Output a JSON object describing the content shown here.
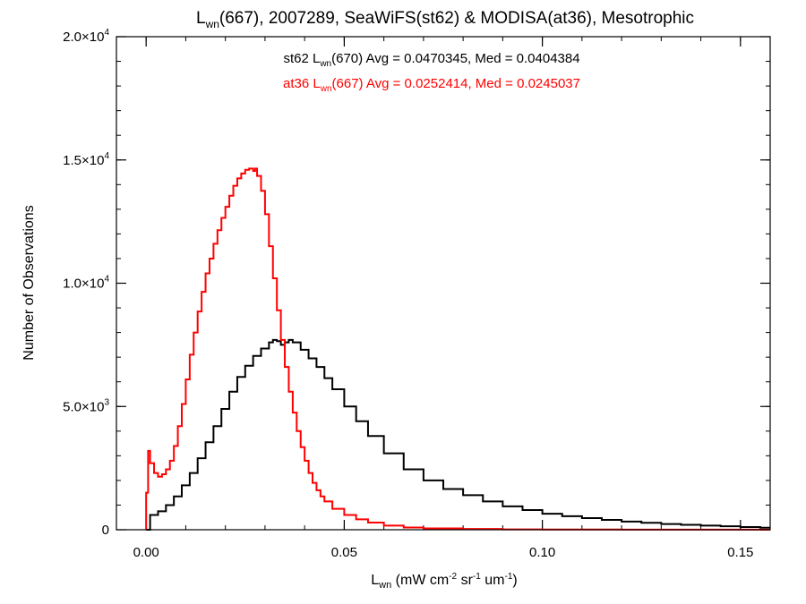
{
  "chart_data": {
    "type": "line",
    "step": true,
    "title": {
      "main": "L",
      "sub": "wn",
      "rest": "(667), 2007289, SeaWiFS(st62) & MODISA(at36), Mesotrophic"
    },
    "xlabel": {
      "main": "L",
      "sub": "wn",
      "rest": " (mW cm",
      "sup1": "-2",
      "mid1": " sr",
      "sup2": "-1",
      "mid2": " um",
      "sup3": "-1",
      "end": ")"
    },
    "ylabel": "Number of Observations",
    "xlim": [
      -0.0075,
      0.1575
    ],
    "ylim": [
      0,
      20000
    ],
    "xticks": [
      {
        "value": 0.0,
        "label": "0.00"
      },
      {
        "value": 0.05,
        "label": "0.05"
      },
      {
        "value": 0.1,
        "label": "0.10"
      },
      {
        "value": 0.15,
        "label": "0.15"
      }
    ],
    "yticks": [
      {
        "value": 0,
        "mant": "0",
        "exp": ""
      },
      {
        "value": 5000,
        "mant": "5.0×10",
        "exp": "3"
      },
      {
        "value": 10000,
        "mant": "1.0×10",
        "exp": "4"
      },
      {
        "value": 15000,
        "mant": "1.5×10",
        "exp": "4"
      },
      {
        "value": 20000,
        "mant": "2.0×10",
        "exp": "4"
      }
    ],
    "annotations": [
      {
        "pre": "st62 L",
        "sub": "wn",
        "post": "(670) Avg = 0.0470345, Med = 0.0404384",
        "color": "#000000"
      },
      {
        "pre": "at36 L",
        "sub": "wn",
        "post": "(667) Avg = 0.0252414, Med = 0.0245037",
        "color": "#ff0000"
      }
    ],
    "series": [
      {
        "color": "#000000",
        "x": [
          0.0,
          0.001,
          0.003,
          0.005,
          0.007,
          0.009,
          0.011,
          0.013,
          0.015,
          0.017,
          0.019,
          0.021,
          0.023,
          0.025,
          0.027,
          0.029,
          0.031,
          0.032,
          0.033,
          0.034,
          0.035,
          0.036,
          0.037,
          0.039,
          0.041,
          0.043,
          0.045,
          0.047,
          0.05,
          0.053,
          0.056,
          0.06,
          0.065,
          0.07,
          0.075,
          0.08,
          0.085,
          0.09,
          0.095,
          0.1,
          0.105,
          0.11,
          0.115,
          0.12,
          0.125,
          0.13,
          0.135,
          0.14,
          0.145,
          0.15,
          0.155
        ],
        "y": [
          0,
          600,
          750,
          1000,
          1350,
          1800,
          2300,
          2900,
          3550,
          4200,
          4900,
          5600,
          6200,
          6650,
          7050,
          7350,
          7600,
          7700,
          7650,
          7500,
          7600,
          7700,
          7600,
          7300,
          6950,
          6600,
          6150,
          5700,
          5000,
          4400,
          3800,
          3100,
          2450,
          2000,
          1650,
          1400,
          1150,
          950,
          800,
          650,
          550,
          470,
          400,
          330,
          280,
          230,
          200,
          170,
          140,
          110,
          80
        ]
      },
      {
        "color": "#ff0000",
        "x": [
          0.0,
          0.0005,
          0.001,
          0.002,
          0.003,
          0.004,
          0.005,
          0.006,
          0.007,
          0.008,
          0.009,
          0.01,
          0.011,
          0.012,
          0.013,
          0.014,
          0.015,
          0.016,
          0.017,
          0.018,
          0.019,
          0.02,
          0.021,
          0.022,
          0.023,
          0.024,
          0.025,
          0.026,
          0.027,
          0.0275,
          0.028,
          0.029,
          0.03,
          0.031,
          0.032,
          0.033,
          0.034,
          0.035,
          0.036,
          0.037,
          0.038,
          0.039,
          0.04,
          0.041,
          0.042,
          0.043,
          0.044,
          0.045,
          0.047,
          0.05,
          0.053,
          0.056,
          0.06,
          0.065,
          0.07,
          0.08,
          0.09,
          0.1,
          0.12,
          0.155
        ],
        "y": [
          1500,
          3200,
          2700,
          2300,
          2150,
          2250,
          2450,
          2800,
          3400,
          4200,
          5100,
          6100,
          7100,
          8000,
          8850,
          9650,
          10400,
          11000,
          11600,
          12150,
          12650,
          13100,
          13550,
          13950,
          14250,
          14450,
          14600,
          14650,
          14550,
          14650,
          14350,
          13750,
          12800,
          11500,
          10200,
          8900,
          7700,
          6600,
          5600,
          4750,
          4000,
          3350,
          2800,
          2300,
          1900,
          1600,
          1350,
          1150,
          850,
          600,
          420,
          290,
          170,
          90,
          55,
          30,
          15,
          10,
          5,
          2
        ]
      }
    ]
  }
}
